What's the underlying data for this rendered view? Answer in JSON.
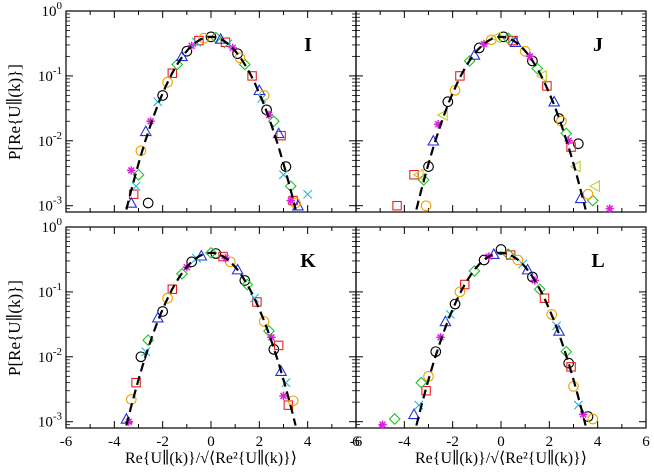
{
  "figure": {
    "ylabel": "P[Re{U∥(k)}]",
    "xlabel": "Re{U∥(k)}/√⟨Re²{U∥(k)}⟩"
  },
  "chart_data": [
    {
      "type": "scatter",
      "panel": "I",
      "xlim": [
        -6,
        6
      ],
      "ylim": [
        0.0008,
        1
      ],
      "yscale": "log",
      "xticks": [
        "-6",
        "-4",
        "-2",
        "0",
        "2",
        "4",
        "6"
      ],
      "yticks": [
        "10^-3",
        "10^-2",
        "10^-1",
        "10^0"
      ],
      "reference_curve": "Gaussian N(0,1), dashed",
      "series": [
        {
          "name": "circle",
          "color": "#000000",
          "points": [
            [
              -2.6,
              0.0011
            ],
            [
              -2.0,
              0.05
            ],
            [
              -1.0,
              0.24
            ],
            [
              0.0,
              0.4
            ],
            [
              1.1,
              0.22
            ],
            [
              2.3,
              0.03
            ],
            [
              3.1,
              0.004
            ]
          ]
        },
        {
          "name": "square",
          "color": "#e8231f",
          "points": [
            [
              -3.2,
              0.0015
            ],
            [
              -1.6,
              0.11
            ],
            [
              -0.5,
              0.35
            ],
            [
              0.6,
              0.33
            ],
            [
              1.7,
              0.1
            ],
            [
              2.9,
              0.012
            ],
            [
              3.4,
              0.0012
            ]
          ]
        },
        {
          "name": "diamond",
          "color": "#22c02a",
          "points": [
            [
              -3.0,
              0.003
            ],
            [
              -1.4,
              0.15
            ],
            [
              0.2,
              0.39
            ],
            [
              1.4,
              0.15
            ],
            [
              2.6,
              0.02
            ],
            [
              3.3,
              0.002
            ]
          ]
        },
        {
          "name": "triangle",
          "color": "#2030e0",
          "points": [
            [
              -3.3,
              0.0011
            ],
            [
              -2.7,
              0.014
            ],
            [
              -1.2,
              0.2
            ],
            [
              0.4,
              0.37
            ],
            [
              2.0,
              0.06
            ],
            [
              2.8,
              0.013
            ],
            [
              3.6,
              0.001
            ]
          ]
        },
        {
          "name": "circle-orange",
          "color": "#f2a200",
          "points": [
            [
              -2.9,
              0.007
            ],
            [
              -1.8,
              0.08
            ],
            [
              -0.3,
              0.38
            ],
            [
              1.2,
              0.19
            ],
            [
              2.2,
              0.05
            ],
            [
              3.5,
              0.0011
            ]
          ]
        },
        {
          "name": "star",
          "color": "#e020e0",
          "points": [
            [
              -3.3,
              0.0035
            ],
            [
              -2.5,
              0.02
            ],
            [
              -0.8,
              0.29
            ],
            [
              0.9,
              0.27
            ],
            [
              2.4,
              0.025
            ],
            [
              3.3,
              0.0012
            ]
          ]
        },
        {
          "name": "cross",
          "color": "#20b8d8",
          "points": [
            [
              -3.1,
              0.002
            ],
            [
              -2.2,
              0.04
            ],
            [
              -0.6,
              0.33
            ],
            [
              0.7,
              0.31
            ],
            [
              2.1,
              0.045
            ],
            [
              3.0,
              0.003
            ],
            [
              4.0,
              0.0015
            ]
          ]
        }
      ]
    },
    {
      "type": "scatter",
      "panel": "J",
      "xlim": [
        -6,
        6
      ],
      "ylim": [
        0.0008,
        1
      ],
      "yscale": "log",
      "xticks": [
        "-6",
        "-4",
        "-2",
        "0",
        "2",
        "4",
        "6"
      ],
      "yticks": [
        "10^-3",
        "10^-2",
        "10^-1",
        "10^0"
      ],
      "reference_curve": "Gaussian N(0,1), dashed",
      "series": [
        {
          "name": "circle",
          "color": "#000000",
          "points": [
            [
              -3.0,
              0.004
            ],
            [
              -2.2,
              0.04
            ],
            [
              -0.9,
              0.27
            ],
            [
              0.1,
              0.4
            ],
            [
              1.3,
              0.17
            ],
            [
              2.4,
              0.022
            ],
            [
              3.2,
              0.009
            ]
          ]
        },
        {
          "name": "square",
          "color": "#e8231f",
          "points": [
            [
              -4.3,
              0.001
            ],
            [
              -3.6,
              0.003
            ],
            [
              -1.7,
              0.1
            ],
            [
              0.5,
              0.35
            ],
            [
              1.9,
              0.07
            ],
            [
              2.9,
              0.008
            ]
          ]
        },
        {
          "name": "diamond",
          "color": "#22c02a",
          "points": [
            [
              -3.2,
              0.0025
            ],
            [
              -1.3,
              0.17
            ],
            [
              0.3,
              0.38
            ],
            [
              1.5,
              0.13
            ],
            [
              2.7,
              0.013
            ],
            [
              3.8,
              0.0012
            ]
          ]
        },
        {
          "name": "triangle",
          "color": "#2030e0",
          "points": [
            [
              -2.8,
              0.01
            ],
            [
              -1.1,
              0.21
            ],
            [
              0.6,
              0.33
            ],
            [
              2.2,
              0.04
            ],
            [
              3.3,
              0.0013
            ]
          ]
        },
        {
          "name": "circle-orange",
          "color": "#f2a200",
          "points": [
            [
              -3.1,
              0.001
            ],
            [
              -1.9,
              0.06
            ],
            [
              -0.4,
              0.36
            ],
            [
              1.0,
              0.24
            ],
            [
              2.5,
              0.02
            ],
            [
              3.6,
              0.0015
            ]
          ]
        },
        {
          "name": "star",
          "color": "#e020e0",
          "points": [
            [
              -2.6,
              0.018
            ],
            [
              -0.7,
              0.31
            ],
            [
              1.2,
              0.2
            ],
            [
              2.8,
              0.01
            ],
            [
              4.5,
              0.0009
            ]
          ]
        },
        {
          "name": "left-triangle",
          "color": "#c0d020",
          "points": [
            [
              -3.4,
              0.003
            ],
            [
              -2.4,
              0.025
            ],
            [
              -0.2,
              0.39
            ],
            [
              1.7,
              0.1
            ],
            [
              3.1,
              0.004
            ],
            [
              3.9,
              0.002
            ]
          ]
        }
      ]
    },
    {
      "type": "scatter",
      "panel": "K",
      "xlim": [
        -6,
        6
      ],
      "ylim": [
        0.0008,
        1
      ],
      "yscale": "log",
      "xticks": [
        "-6",
        "-4",
        "-2",
        "0",
        "2",
        "4",
        "6"
      ],
      "yticks": [
        "10^-3",
        "10^-2",
        "10^-1",
        "10^0"
      ],
      "reference_curve": "Gaussian N(0,1), dashed",
      "series": [
        {
          "name": "circle",
          "color": "#000000",
          "points": [
            [
              -2.9,
              0.01
            ],
            [
              -2.0,
              0.05
            ],
            [
              -0.8,
              0.29
            ],
            [
              0.2,
              0.39
            ],
            [
              1.4,
              0.15
            ],
            [
              2.6,
              0.013
            ]
          ]
        },
        {
          "name": "square",
          "color": "#e8231f",
          "points": [
            [
              -3.1,
              0.004
            ],
            [
              -1.6,
              0.11
            ],
            [
              0.5,
              0.35
            ],
            [
              1.9,
              0.07
            ],
            [
              2.8,
              0.015
            ],
            [
              3.2,
              0.0018
            ]
          ]
        },
        {
          "name": "diamond",
          "color": "#22c02a",
          "points": [
            [
              -2.6,
              0.018
            ],
            [
              -1.2,
              0.19
            ],
            [
              0.0,
              0.4
            ],
            [
              1.5,
              0.13
            ],
            [
              2.4,
              0.025
            ]
          ]
        },
        {
          "name": "triangle",
          "color": "#2030e0",
          "points": [
            [
              -3.5,
              0.0011
            ],
            [
              -2.2,
              0.04
            ],
            [
              -0.4,
              0.36
            ],
            [
              1.1,
              0.22
            ],
            [
              2.9,
              0.006
            ]
          ]
        },
        {
          "name": "circle-orange",
          "color": "#f2a200",
          "points": [
            [
              -3.3,
              0.0022
            ],
            [
              -1.8,
              0.08
            ],
            [
              0.8,
              0.29
            ],
            [
              2.2,
              0.035
            ],
            [
              3.4,
              0.0021
            ]
          ]
        },
        {
          "name": "star",
          "color": "#e020e0",
          "points": [
            [
              -3.4,
              0.001
            ],
            [
              -1.0,
              0.24
            ],
            [
              0.6,
              0.33
            ],
            [
              2.5,
              0.02
            ],
            [
              3.0,
              0.0025
            ]
          ]
        },
        {
          "name": "cross",
          "color": "#20b8d8",
          "points": [
            [
              -2.7,
              0.012
            ],
            [
              -0.6,
              0.33
            ],
            [
              1.8,
              0.08
            ],
            [
              3.1,
              0.004
            ]
          ]
        }
      ]
    },
    {
      "type": "scatter",
      "panel": "L",
      "xlim": [
        -6,
        6
      ],
      "ylim": [
        0.0008,
        1
      ],
      "yscale": "log",
      "xticks": [
        "-6",
        "-4",
        "-2",
        "0",
        "2",
        "4",
        "6"
      ],
      "yticks": [
        "10^-3",
        "10^-2",
        "10^-1",
        "10^0"
      ],
      "reference_curve": "Gaussian N(0,1), dashed",
      "series": [
        {
          "name": "circle",
          "color": "#000000",
          "points": [
            [
              -2.7,
              0.012
            ],
            [
              -1.9,
              0.065
            ],
            [
              -0.7,
              0.31
            ],
            [
              0.0,
              0.45
            ],
            [
              1.3,
              0.17
            ],
            [
              2.8,
              0.008
            ],
            [
              3.6,
              0.0012
            ]
          ]
        },
        {
          "name": "square",
          "color": "#e8231f",
          "points": [
            [
              -3.1,
              0.003
            ],
            [
              -1.5,
              0.13
            ],
            [
              0.4,
              0.37
            ],
            [
              1.8,
              0.08
            ],
            [
              2.9,
              0.007
            ]
          ]
        },
        {
          "name": "diamond",
          "color": "#22c02a",
          "points": [
            [
              -4.4,
              0.0011
            ],
            [
              -3.3,
              0.004
            ],
            [
              -1.1,
              0.21
            ],
            [
              0.3,
              0.38
            ],
            [
              1.6,
              0.11
            ],
            [
              2.7,
              0.012
            ]
          ]
        },
        {
          "name": "triangle",
          "color": "#2030e0",
          "points": [
            [
              -3.6,
              0.0013
            ],
            [
              -2.3,
              0.035
            ],
            [
              -0.3,
              0.38
            ],
            [
              1.1,
              0.22
            ],
            [
              2.4,
              0.025
            ]
          ]
        },
        {
          "name": "circle-orange",
          "color": "#f2a200",
          "points": [
            [
              -3.0,
              0.005
            ],
            [
              -1.7,
              0.1
            ],
            [
              0.7,
              0.31
            ],
            [
              2.1,
              0.045
            ],
            [
              3.0,
              0.0035
            ],
            [
              3.8,
              0.0011
            ]
          ]
        },
        {
          "name": "star",
          "color": "#e020e0",
          "points": [
            [
              -4.9,
              0.0009
            ],
            [
              -2.5,
              0.02
            ],
            [
              -0.5,
              0.35
            ],
            [
              1.4,
              0.15
            ],
            [
              3.4,
              0.0013
            ]
          ]
        },
        {
          "name": "cross",
          "color": "#20b8d8",
          "points": [
            [
              -3.4,
              0.0018
            ],
            [
              -2.1,
              0.045
            ],
            [
              0.9,
              0.27
            ],
            [
              2.3,
              0.03
            ],
            [
              3.2,
              0.0018
            ]
          ]
        }
      ]
    }
  ]
}
